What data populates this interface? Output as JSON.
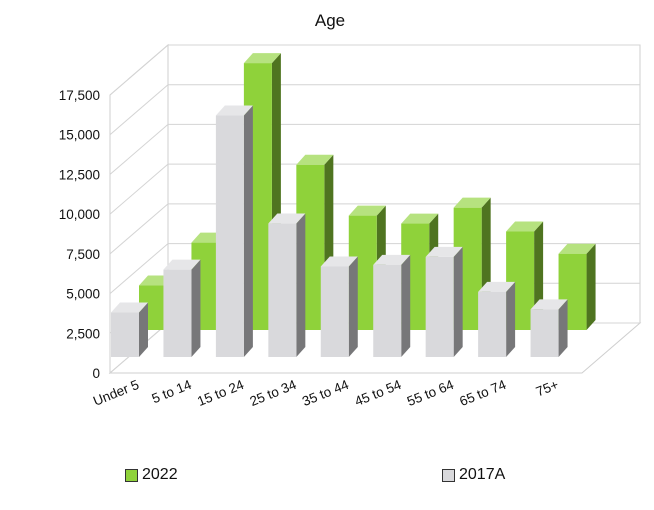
{
  "chart_data": {
    "type": "bar",
    "title": "Age",
    "xlabel": "",
    "ylabel": "",
    "categories": [
      "Under 5",
      "5 to 14",
      "15 to 24",
      "25 to 34",
      "35 to 44",
      "45 to 54",
      "55 to 64",
      "65 to 74",
      "75+"
    ],
    "series": [
      {
        "name": "2022",
        "values": [
          2800,
          5500,
          16800,
          10400,
          7200,
          6700,
          7700,
          6200,
          4800
        ],
        "color": "#8fd23a"
      },
      {
        "name": "2017A",
        "values": [
          2800,
          5500,
          15200,
          8400,
          5700,
          5800,
          6300,
          4100,
          3000
        ],
        "color": "#d9d9dc"
      }
    ],
    "ylim": [
      0,
      17500
    ],
    "yticks": [
      "0",
      "2,500",
      "5,000",
      "7,500",
      "10,000",
      "12,500",
      "15,000",
      "17,500"
    ],
    "grid": true,
    "style": "3d-clustered-columns",
    "legend_position": "bottom"
  }
}
